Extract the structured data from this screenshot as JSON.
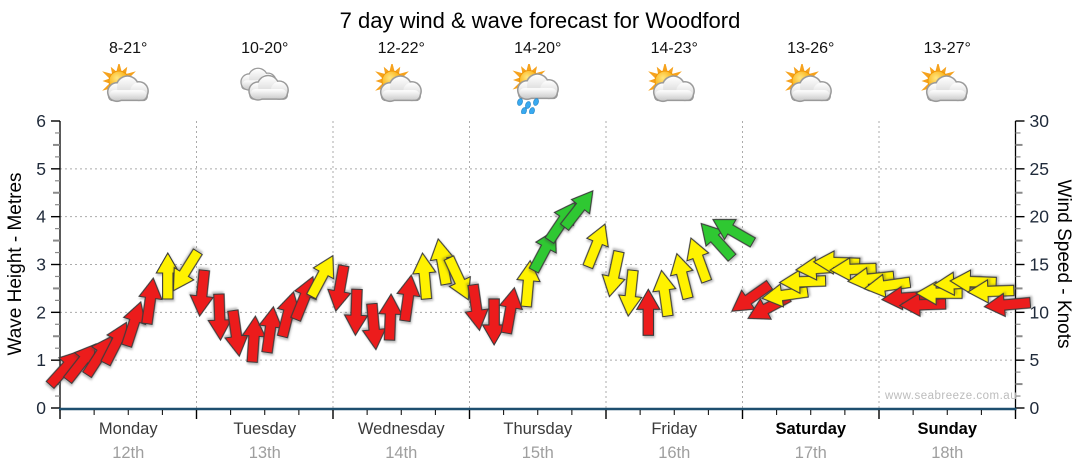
{
  "title": "7 day wind & wave forecast for Woodford",
  "watermark": "www.seabreeze.com.au",
  "days": [
    {
      "name": "Monday",
      "date": "12th",
      "temp": "8-21°",
      "icon": "partly-cloudy",
      "weekend": false
    },
    {
      "name": "Tuesday",
      "date": "13th",
      "temp": "10-20°",
      "icon": "cloudy",
      "weekend": false
    },
    {
      "name": "Wednesday",
      "date": "14th",
      "temp": "12-22°",
      "icon": "partly-cloudy",
      "weekend": false
    },
    {
      "name": "Thursday",
      "date": "15th",
      "temp": "14-20°",
      "icon": "showers",
      "weekend": false
    },
    {
      "name": "Friday",
      "date": "16th",
      "temp": "14-23°",
      "icon": "partly-cloudy",
      "weekend": false
    },
    {
      "name": "Saturday",
      "date": "17th",
      "temp": "13-26°",
      "icon": "partly-cloudy",
      "weekend": true
    },
    {
      "name": "Sunday",
      "date": "18th",
      "temp": "13-27°",
      "icon": "partly-cloudy",
      "weekend": true
    }
  ],
  "chart_data": {
    "type": "wind-arrow-timeseries",
    "title": "7 day wind & wave forecast for Woodford",
    "left_axis": {
      "label": "Wave Height - Metres",
      "min": 0,
      "max": 6,
      "ticks": [
        0,
        1,
        2,
        3,
        4,
        5,
        6
      ]
    },
    "right_axis": {
      "label": "Wind Speed - Knots",
      "min": 0,
      "max": 30,
      "ticks": [
        0,
        5,
        10,
        15,
        20,
        25,
        30
      ]
    },
    "x_axis": {
      "categories": [
        "Monday",
        "Tuesday",
        "Wednesday",
        "Thursday",
        "Friday",
        "Saturday",
        "Sunday"
      ]
    },
    "grid": "dotted horizontal at 1-5 m and vertical at day boundaries",
    "speed_colors": {
      "red": "#ec1c1c",
      "yellow": "#fff200",
      "green": "#2fc832"
    },
    "arrow_columns": [
      "time_days",
      "knots",
      "color",
      "direction_deg_pointing_to"
    ],
    "arrows": [
      [
        0.04,
        4.2,
        "red",
        42
      ],
      [
        0.16,
        4.8,
        "red",
        38
      ],
      [
        0.29,
        5.5,
        "red",
        33
      ],
      [
        0.41,
        6.8,
        "red",
        27
      ],
      [
        0.54,
        8.8,
        "red",
        18
      ],
      [
        0.66,
        11.2,
        "red",
        8
      ],
      [
        0.79,
        13.8,
        "yellow",
        0
      ],
      [
        0.92,
        14.3,
        "yellow",
        212
      ],
      [
        1.04,
        12.0,
        "red",
        186
      ],
      [
        1.17,
        9.5,
        "red",
        178
      ],
      [
        1.29,
        7.8,
        "red",
        172
      ],
      [
        1.42,
        7.2,
        "red",
        4
      ],
      [
        1.54,
        8.2,
        "red",
        8
      ],
      [
        1.67,
        9.8,
        "red",
        14
      ],
      [
        1.79,
        11.5,
        "red",
        22
      ],
      [
        1.92,
        13.8,
        "yellow",
        28
      ],
      [
        2.05,
        12.5,
        "red",
        190
      ],
      [
        2.17,
        10.0,
        "red",
        182
      ],
      [
        2.3,
        8.5,
        "red",
        175
      ],
      [
        2.42,
        9.5,
        "red",
        2
      ],
      [
        2.55,
        11.5,
        "red",
        8
      ],
      [
        2.67,
        13.8,
        "yellow",
        355
      ],
      [
        2.8,
        15.3,
        "yellow",
        350
      ],
      [
        2.92,
        13.5,
        "yellow",
        155
      ],
      [
        3.05,
        10.5,
        "red",
        172
      ],
      [
        3.18,
        9.0,
        "red",
        180
      ],
      [
        3.3,
        10.2,
        "red",
        10
      ],
      [
        3.43,
        13.0,
        "yellow",
        5
      ],
      [
        3.55,
        16.5,
        "green",
        28
      ],
      [
        3.68,
        19.5,
        "green",
        34
      ],
      [
        3.8,
        20.8,
        "green",
        38
      ],
      [
        3.93,
        17.0,
        "yellow",
        22
      ],
      [
        4.06,
        14.0,
        "yellow",
        192
      ],
      [
        4.18,
        12.0,
        "yellow",
        186
      ],
      [
        4.31,
        10.0,
        "red",
        0
      ],
      [
        4.43,
        12.0,
        "yellow",
        352
      ],
      [
        4.56,
        13.8,
        "yellow",
        346
      ],
      [
        4.68,
        15.5,
        "yellow",
        340
      ],
      [
        4.81,
        17.5,
        "green",
        318
      ],
      [
        4.93,
        18.5,
        "green",
        300
      ],
      [
        5.06,
        11.5,
        "red",
        235
      ],
      [
        5.19,
        10.5,
        "red",
        242
      ],
      [
        5.31,
        11.8,
        "yellow",
        262
      ],
      [
        5.44,
        13.2,
        "yellow",
        268
      ],
      [
        5.56,
        14.6,
        "yellow",
        266
      ],
      [
        5.69,
        15.2,
        "yellow",
        272
      ],
      [
        5.81,
        14.5,
        "yellow",
        268
      ],
      [
        5.94,
        13.5,
        "yellow",
        264
      ],
      [
        6.06,
        12.8,
        "yellow",
        262
      ],
      [
        6.19,
        11.5,
        "red",
        266
      ],
      [
        6.32,
        10.8,
        "red",
        268
      ],
      [
        6.44,
        12.0,
        "yellow",
        270
      ],
      [
        6.57,
        13.0,
        "yellow",
        267
      ],
      [
        6.69,
        13.2,
        "yellow",
        272
      ],
      [
        6.82,
        12.2,
        "yellow",
        268
      ],
      [
        6.94,
        10.8,
        "red",
        265
      ]
    ]
  }
}
